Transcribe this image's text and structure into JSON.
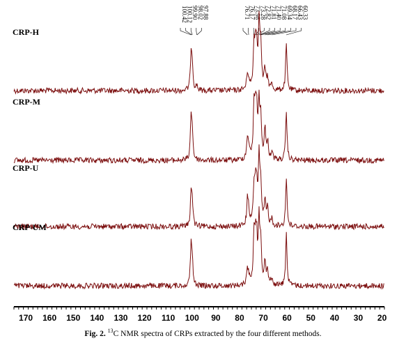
{
  "chart_data": {
    "type": "line",
    "title": "",
    "xlabel": "",
    "ylabel": "",
    "x_reversed": true,
    "xlim": [
      175,
      19
    ],
    "x_ticks": [
      170,
      160,
      150,
      140,
      130,
      120,
      110,
      100,
      90,
      80,
      70,
      60,
      50,
      40,
      30,
      20
    ],
    "line_color": "#7b0d0d",
    "peak_labels": [
      "100.42",
      "100.12",
      "99.90",
      "98.02",
      "97.88",
      "76.71",
      "76.17",
      "73.98",
      "73.28",
      "72.82",
      "71.81",
      "71.40",
      "71.08",
      "69.34",
      "68.17",
      "66.43",
      "60.33"
    ],
    "series": [
      {
        "name": "CRP-H",
        "peaks": [
          {
            "x": 100.4,
            "y": 0.55
          },
          {
            "x": 99.9,
            "y": 0.35
          },
          {
            "x": 98.0,
            "y": 0.08
          },
          {
            "x": 76.7,
            "y": 0.22
          },
          {
            "x": 76.2,
            "y": 0.1
          },
          {
            "x": 73.9,
            "y": 0.62
          },
          {
            "x": 73.3,
            "y": 0.48
          },
          {
            "x": 72.8,
            "y": 0.5
          },
          {
            "x": 71.8,
            "y": 0.95
          },
          {
            "x": 71.1,
            "y": 0.62
          },
          {
            "x": 69.3,
            "y": 0.28
          },
          {
            "x": 68.2,
            "y": 0.16
          },
          {
            "x": 66.4,
            "y": 0.08
          },
          {
            "x": 60.3,
            "y": 0.7
          }
        ]
      },
      {
        "name": "CRP-M",
        "peaks": [
          {
            "x": 100.4,
            "y": 0.65
          },
          {
            "x": 99.9,
            "y": 0.35
          },
          {
            "x": 76.7,
            "y": 0.3
          },
          {
            "x": 76.2,
            "y": 0.15
          },
          {
            "x": 73.9,
            "y": 0.72
          },
          {
            "x": 73.3,
            "y": 0.6
          },
          {
            "x": 72.8,
            "y": 0.58
          },
          {
            "x": 71.8,
            "y": 0.78
          },
          {
            "x": 71.1,
            "y": 0.55
          },
          {
            "x": 69.3,
            "y": 0.42
          },
          {
            "x": 68.2,
            "y": 0.25
          },
          {
            "x": 66.4,
            "y": 0.12
          },
          {
            "x": 60.3,
            "y": 0.72
          }
        ]
      },
      {
        "name": "CRP-U",
        "peaks": [
          {
            "x": 100.4,
            "y": 0.5
          },
          {
            "x": 99.9,
            "y": 0.32
          },
          {
            "x": 76.7,
            "y": 0.35
          },
          {
            "x": 76.2,
            "y": 0.18
          },
          {
            "x": 73.9,
            "y": 0.52
          },
          {
            "x": 73.3,
            "y": 0.45
          },
          {
            "x": 72.8,
            "y": 0.5
          },
          {
            "x": 71.8,
            "y": 0.95
          },
          {
            "x": 71.1,
            "y": 0.55
          },
          {
            "x": 69.3,
            "y": 0.35
          },
          {
            "x": 68.2,
            "y": 0.25
          },
          {
            "x": 66.4,
            "y": 0.1
          },
          {
            "x": 60.3,
            "y": 0.75
          }
        ]
      },
      {
        "name": "CRP-UM",
        "peaks": [
          {
            "x": 100.4,
            "y": 0.62
          },
          {
            "x": 99.9,
            "y": 0.3
          },
          {
            "x": 76.7,
            "y": 0.22
          },
          {
            "x": 76.2,
            "y": 0.1
          },
          {
            "x": 73.9,
            "y": 0.72
          },
          {
            "x": 73.3,
            "y": 0.52
          },
          {
            "x": 72.8,
            "y": 0.55
          },
          {
            "x": 71.8,
            "y": 0.88
          },
          {
            "x": 71.1,
            "y": 0.6
          },
          {
            "x": 69.3,
            "y": 0.35
          },
          {
            "x": 68.2,
            "y": 0.2
          },
          {
            "x": 66.4,
            "y": 0.1
          },
          {
            "x": 60.3,
            "y": 0.8
          }
        ]
      }
    ]
  },
  "caption": {
    "prefix": "Fig. 2.",
    "superscript": "13",
    "text": "C NMR spectra of CRPs extracted by the four different methods."
  }
}
